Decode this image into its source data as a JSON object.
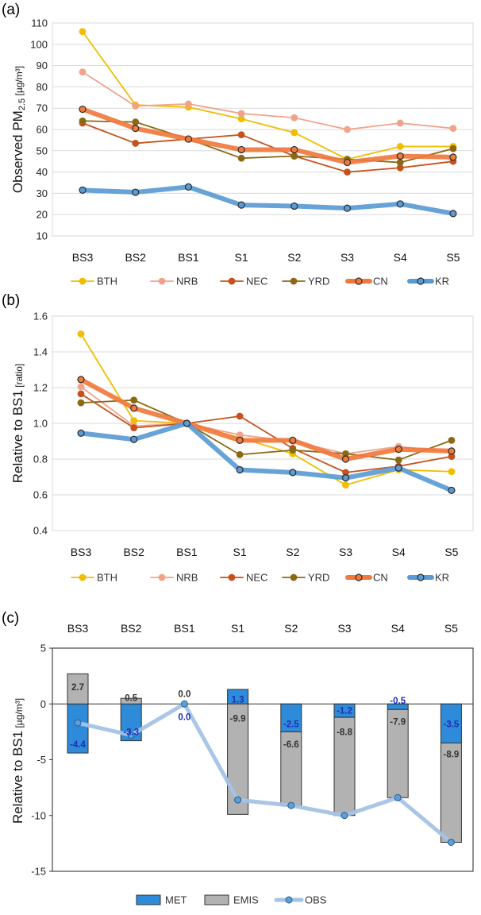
{
  "colors": {
    "BTH": "#f0bd00",
    "NRB": "#f1a38a",
    "NEC": "#c5521e",
    "YRD": "#8b6914",
    "CN": "#f07a3e",
    "KR": "#5b9bd5",
    "MET": "#2e8bd9",
    "EMIS": "#b2b2b2",
    "OBS_line": "#a4c3e6",
    "OBS_marker": "#5aa0dc",
    "met_text": "#1f2fb5",
    "emis_text": "#333333",
    "grid": "#d9d9d9",
    "marker_edge": "#2b2b2b"
  },
  "chart_data": [
    {
      "panel_label": "(a)",
      "type": "line",
      "ylabel_parts": {
        "prefix": "Observed PM",
        "sub": "2.5",
        "suffix": " [µg/m³]"
      },
      "categories": [
        "BS3",
        "BS2",
        "BS1",
        "S1",
        "S2",
        "S3",
        "S4",
        "S5"
      ],
      "ylim": [
        10,
        110
      ],
      "yticks": [
        "10",
        "20",
        "30",
        "40",
        "50",
        "60",
        "70",
        "80",
        "90",
        "100",
        "110"
      ],
      "grid": true,
      "legend_position": "bottom",
      "series": [
        {
          "name": "BTH",
          "values": [
            106,
            71.5,
            70.5,
            65,
            58.5,
            46,
            52,
            52
          ]
        },
        {
          "name": "NRB",
          "values": [
            87,
            71,
            72,
            67.5,
            65.5,
            60,
            63,
            60.5
          ]
        },
        {
          "name": "NEC",
          "values": [
            63,
            53.5,
            55.5,
            57.5,
            47.5,
            40,
            42,
            45
          ]
        },
        {
          "name": "YRD",
          "values": [
            64,
            63.5,
            55.5,
            46.5,
            47.5,
            46,
            44.5,
            51
          ]
        },
        {
          "name": "CN",
          "values": [
            69.5,
            60.5,
            55.5,
            50.5,
            50.5,
            44.5,
            47.5,
            47
          ]
        },
        {
          "name": "KR",
          "values": [
            31.5,
            30.5,
            33,
            24.5,
            24,
            23,
            25,
            20.5
          ]
        }
      ]
    },
    {
      "panel_label": "(b)",
      "type": "line",
      "ylabel_parts": {
        "prefix": "Relative to BS1",
        "suffix": " [ratio]"
      },
      "categories": [
        "BS3",
        "BS2",
        "BS1",
        "S1",
        "S2",
        "S3",
        "S4",
        "S5"
      ],
      "ylim": [
        0.4,
        1.6
      ],
      "yticks": [
        "0.4",
        "0.6",
        "0.8",
        "1.0",
        "1.2",
        "1.4",
        "1.6"
      ],
      "grid": true,
      "legend_position": "bottom",
      "series": [
        {
          "name": "BTH",
          "values": [
            1.5,
            1.015,
            1.0,
            0.92,
            0.83,
            0.655,
            0.74,
            0.73
          ]
        },
        {
          "name": "NRB",
          "values": [
            1.205,
            0.985,
            1.0,
            0.935,
            0.9,
            0.83,
            0.87,
            0.84
          ]
        },
        {
          "name": "NEC",
          "values": [
            1.165,
            0.975,
            1.0,
            1.04,
            0.86,
            0.725,
            0.76,
            0.815
          ]
        },
        {
          "name": "YRD",
          "values": [
            1.115,
            1.13,
            1.0,
            0.825,
            0.85,
            0.83,
            0.795,
            0.905
          ]
        },
        {
          "name": "CN",
          "values": [
            1.245,
            1.085,
            1.0,
            0.905,
            0.905,
            0.8,
            0.855,
            0.845
          ]
        },
        {
          "name": "KR",
          "values": [
            0.945,
            0.91,
            1.0,
            0.74,
            0.725,
            0.695,
            0.75,
            0.625
          ]
        }
      ]
    },
    {
      "panel_label": "(c)",
      "type": "bar",
      "ylabel_parts": {
        "prefix": "Relative to BS1",
        "suffix": " [µg/m³]"
      },
      "categories": [
        "BS3",
        "BS2",
        "BS1",
        "S1",
        "S2",
        "S3",
        "S4",
        "S5"
      ],
      "ylim": [
        -15,
        5
      ],
      "yticks": [
        "-15",
        "-10",
        "-5",
        "0",
        "5"
      ],
      "grid": false,
      "legend_position": "bottom",
      "series": [
        {
          "name": "MET",
          "values": [
            -4.4,
            -3.3,
            0.0,
            1.3,
            -2.5,
            -1.2,
            -0.5,
            -3.5
          ]
        },
        {
          "name": "EMIS",
          "values": [
            2.7,
            0.5,
            0.0,
            -9.9,
            -6.6,
            -8.8,
            -7.9,
            -8.9
          ]
        },
        {
          "name": "OBS",
          "values": [
            -1.7,
            -2.8,
            0.0,
            -8.6,
            -9.1,
            -10.0,
            -8.4,
            -12.4
          ]
        }
      ],
      "data_labels": {
        "MET": [
          "-4.4",
          "-3.3",
          "0.0",
          "1.3",
          "-2.5",
          "-1.2",
          "-0.5",
          "-3.5"
        ],
        "EMIS": [
          "2.7",
          "0.5",
          "0.0",
          "-9.9",
          "-6.6",
          "-8.8",
          "-7.9",
          "-8.9"
        ]
      }
    }
  ]
}
